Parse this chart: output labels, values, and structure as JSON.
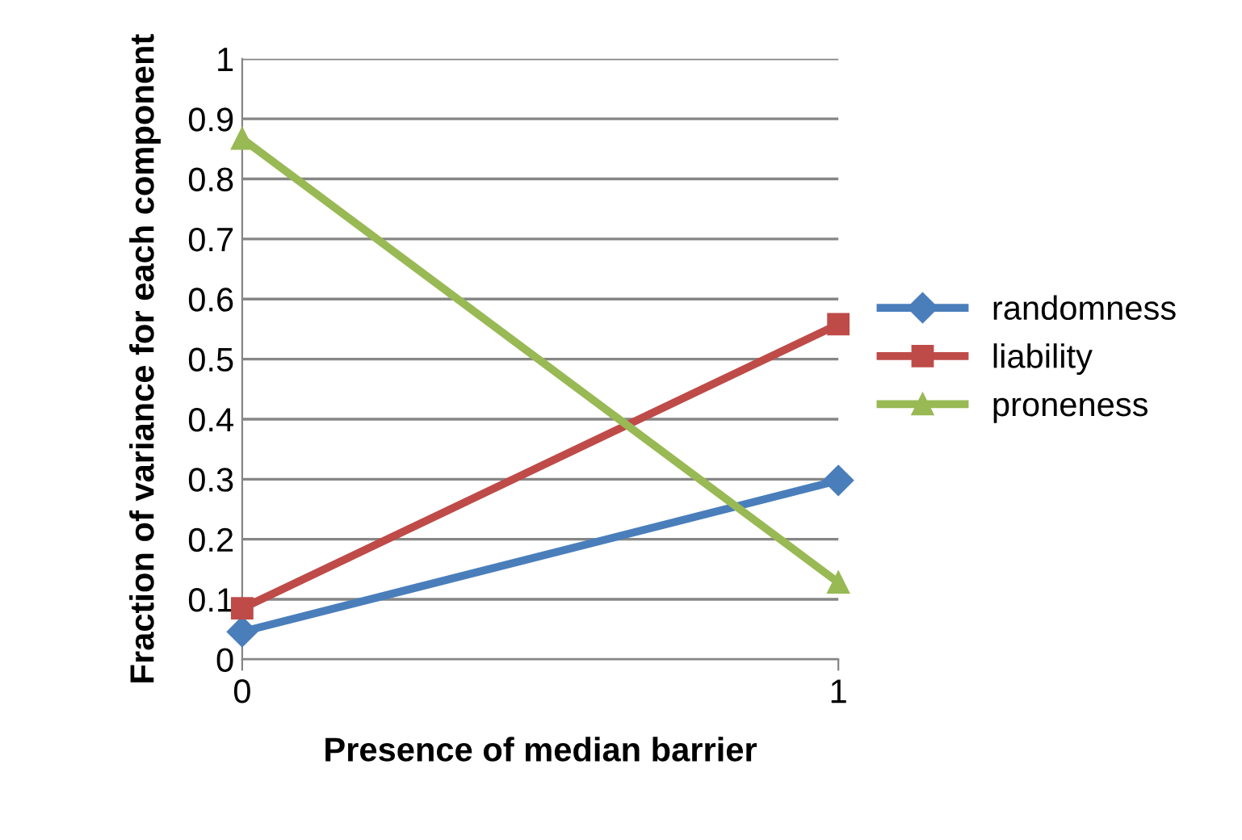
{
  "chart_data": {
    "type": "line",
    "xlabel": "Presence of median barrier",
    "ylabel": "Fraction of variance for each component",
    "x": [
      0,
      1
    ],
    "xlim": [
      0,
      1
    ],
    "xticks": [
      0,
      1
    ],
    "ylim": [
      0,
      1
    ],
    "yticks": [
      0,
      {
        "value": 0.1,
        "label": "0.1"
      },
      {
        "value": 0.2,
        "label": "0.2"
      },
      {
        "value": 0.3,
        "label": "0.3"
      },
      {
        "value": 0.4,
        "label": "0.4"
      },
      {
        "value": 0.5,
        "label": "0.5"
      },
      {
        "value": 0.6,
        "label": "0.6"
      },
      {
        "value": 0.7,
        "label": "0.7"
      },
      {
        "value": 0.8,
        "label": "0.8"
      },
      {
        "value": 0.9,
        "label": "0.9"
      },
      1
    ],
    "grid": "y",
    "legend": "right",
    "line_style": "solid",
    "series": [
      {
        "name": "randomness",
        "color": "#4a7ebb",
        "marker": "diamond",
        "values": [
          0.046,
          0.298
        ]
      },
      {
        "name": "liability",
        "color": "#be4b48",
        "marker": "square",
        "values": [
          0.085,
          0.558
        ]
      },
      {
        "name": "proneness",
        "color": "#98b954",
        "marker": "triangle",
        "values": [
          0.867,
          0.128
        ]
      }
    ]
  }
}
